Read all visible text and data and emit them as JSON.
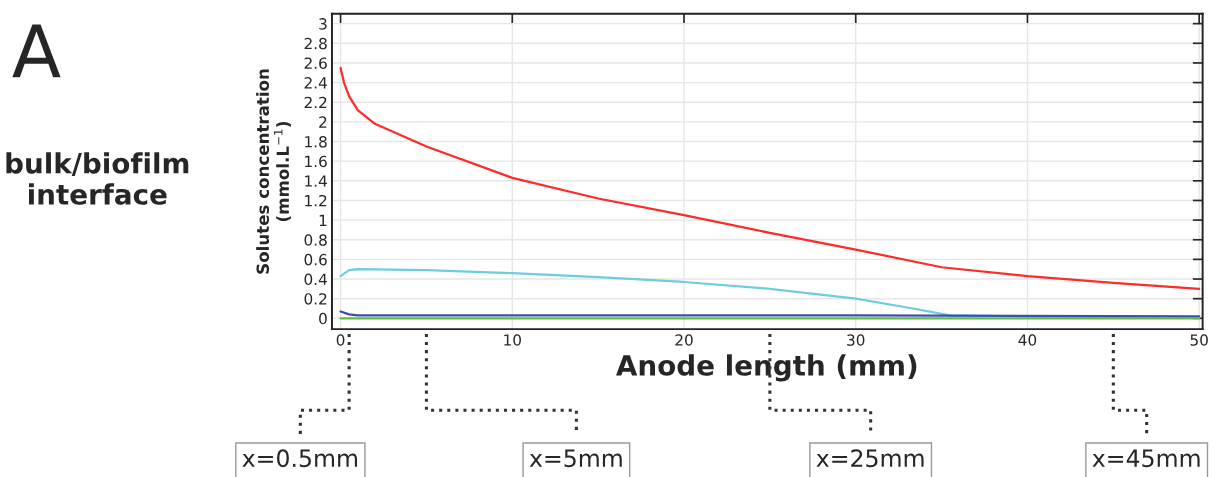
{
  "chart_data": {
    "type": "line",
    "xlabel": "Anode length (mm)",
    "ylabel": "Solutes concentration\n(mmol.L$^{−1}$)",
    "series": [
      {
        "color": "#ff2a2a",
        "x": [
          0,
          0.2,
          0.5,
          1,
          2,
          5,
          10,
          15,
          20,
          25,
          30,
          35,
          40,
          45,
          50
        ],
        "values": [
          2.55,
          2.4,
          2.26,
          2.12,
          1.98,
          1.75,
          1.43,
          1.22,
          1.05,
          0.87,
          0.7,
          0.52,
          0.43,
          0.36,
          0.3
        ]
      },
      {
        "color": "#6ccde0",
        "x": [
          0,
          0.5,
          1,
          5,
          10,
          15,
          20,
          25,
          30,
          33,
          35.5,
          40,
          50
        ],
        "values": [
          0.43,
          0.49,
          0.5,
          0.49,
          0.46,
          0.42,
          0.37,
          0.3,
          0.2,
          0.11,
          0.03,
          0.02,
          0.01
        ]
      },
      {
        "color": "#3b4fb0",
        "x": [
          0,
          0.5,
          1,
          10,
          30,
          50
        ],
        "values": [
          0.07,
          0.04,
          0.03,
          0.03,
          0.03,
          0.02
        ]
      },
      {
        "color": "#5cc03a",
        "x": [
          0,
          50
        ],
        "values": [
          0,
          0
        ]
      }
    ],
    "xlim": [
      -0.5,
      50.2
    ],
    "ylim": [
      -0.11,
      3.1
    ],
    "xticks": [
      0,
      10,
      20,
      30,
      40,
      50
    ],
    "yticks": [
      0,
      0.2,
      0.4,
      0.6,
      0.8,
      1,
      1.2,
      1.4,
      1.6,
      1.8,
      2,
      2.2,
      2.4,
      2.6,
      2.8,
      3
    ],
    "grid": true,
    "annotations": [
      "A",
      "bulk/biofilm\ninterface",
      {
        "text": "x=0.5mm",
        "x": 0.5
      },
      {
        "text": "x=5mm",
        "x": 5
      },
      {
        "text": "x=25mm",
        "x": 25
      },
      {
        "text": "x=45mm",
        "x": 45
      }
    ]
  }
}
